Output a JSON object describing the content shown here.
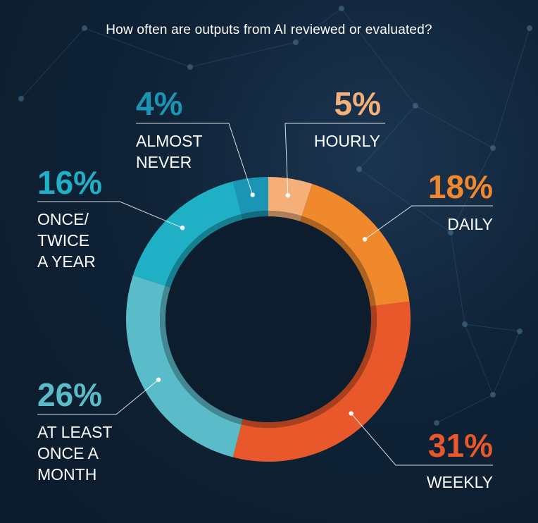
{
  "chart_data": {
    "type": "pie",
    "title": "How often are outputs from AI reviewed or evaluated?",
    "slices": [
      {
        "label": "HOURLY",
        "value": 5,
        "display": "5%",
        "color": "#f5b07a"
      },
      {
        "label": "DAILY",
        "value": 18,
        "display": "18%",
        "color": "#f0882c"
      },
      {
        "label": "WEEKLY",
        "value": 31,
        "display": "31%",
        "color": "#e9582a"
      },
      {
        "label": "AT LEAST\nONCE A\nMONTH",
        "value": 26,
        "display": "26%",
        "color": "#5bbcc9"
      },
      {
        "label": "ONCE/\nTWICE\nA YEAR",
        "value": 16,
        "display": "16%",
        "color": "#1fb0c6"
      },
      {
        "label": "ALMOST\nNEVER",
        "value": 4,
        "display": "4%",
        "color": "#1b95b5"
      }
    ]
  }
}
